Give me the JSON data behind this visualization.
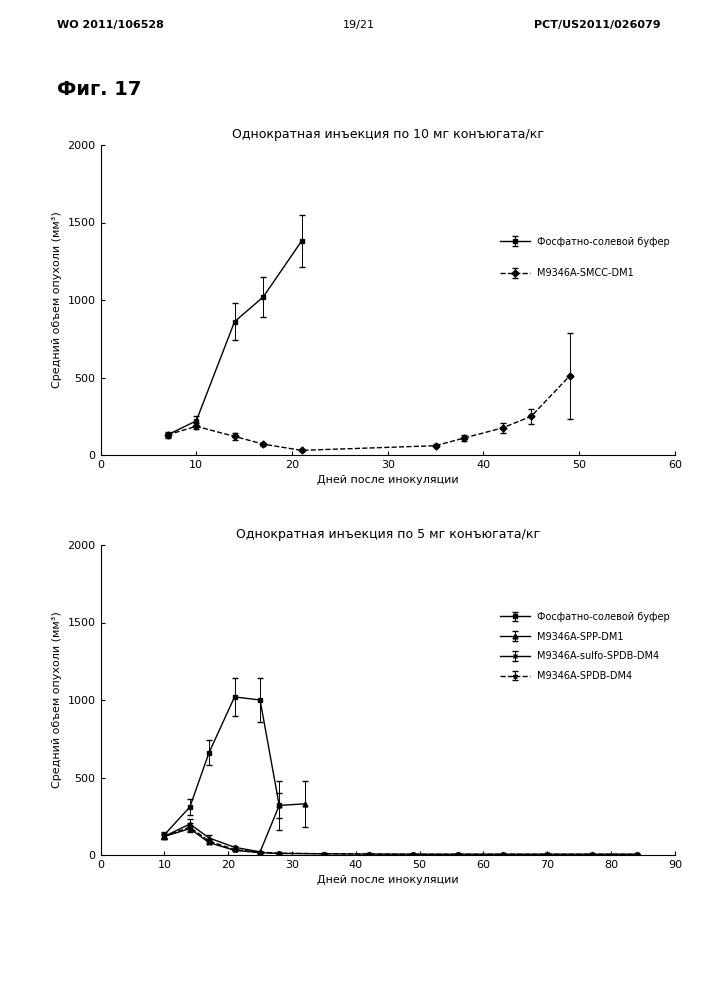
{
  "fig_label": "Фиг. 17",
  "header_left": "WO 2011/106528",
  "header_right": "PCT/US2011/026079",
  "header_center": "19/21",
  "plot1": {
    "title": "Однократная инъекция по 10 мг конъюгата/кг",
    "ylabel": "Средний объем опухоли (мм³)",
    "xlabel": "Дней после инокуляции",
    "xlim": [
      0,
      60
    ],
    "ylim": [
      0,
      2000
    ],
    "xticks": [
      0,
      10,
      20,
      30,
      40,
      50,
      60
    ],
    "yticks": [
      0,
      500,
      1000,
      1500,
      2000
    ],
    "series": [
      {
        "label": "Фосфатно-солевой буфер",
        "x": [
          7,
          10,
          14,
          17,
          21
        ],
        "y": [
          130,
          220,
          860,
          1020,
          1380
        ],
        "yerr": [
          20,
          30,
          120,
          130,
          170
        ],
        "marker": "s",
        "linestyle": "-"
      },
      {
        "label": "M9346A-SMCC-DM1",
        "x": [
          7,
          10,
          14,
          17,
          21,
          35,
          38,
          42,
          45,
          49
        ],
        "y": [
          130,
          185,
          120,
          70,
          30,
          60,
          110,
          175,
          250,
          510
        ],
        "yerr": [
          15,
          20,
          20,
          10,
          5,
          10,
          20,
          30,
          50,
          280
        ],
        "marker": "D",
        "linestyle": "--"
      }
    ]
  },
  "plot2": {
    "title": "Однократная инъекция по 5 мг конъюгата/кг",
    "ylabel": "Средний объем опухоли (мм³)",
    "xlabel": "Дней после инокуляции",
    "xlim": [
      0,
      90
    ],
    "ylim": [
      0,
      2000
    ],
    "xticks": [
      0,
      10,
      20,
      30,
      40,
      50,
      60,
      70,
      80,
      90
    ],
    "yticks": [
      0,
      500,
      1000,
      1500,
      2000
    ],
    "series": [
      {
        "label": "Фосфатно-солевой буфер",
        "x": [
          10,
          14,
          17,
          21,
          25,
          28
        ],
        "y": [
          130,
          310,
          660,
          1020,
          1000,
          320
        ],
        "yerr": [
          20,
          50,
          80,
          120,
          140,
          80
        ],
        "marker": "s",
        "linestyle": "-"
      },
      {
        "label": "M9346A-SPP-DM1",
        "x": [
          10,
          14,
          17,
          21,
          25,
          28,
          32
        ],
        "y": [
          120,
          200,
          110,
          50,
          20,
          320,
          330
        ],
        "yerr": [
          15,
          30,
          20,
          10,
          5,
          160,
          150
        ],
        "marker": "^",
        "linestyle": "-"
      },
      {
        "label": "M9346A-sulfo-SPDB-DM4",
        "x": [
          10,
          14,
          17,
          21,
          25,
          28,
          35,
          42,
          49,
          56,
          63,
          70,
          77,
          84
        ],
        "y": [
          120,
          170,
          80,
          30,
          15,
          10,
          8,
          6,
          5,
          5,
          5,
          5,
          5,
          5
        ],
        "yerr": [
          15,
          20,
          12,
          5,
          3,
          2,
          2,
          2,
          1,
          1,
          1,
          1,
          1,
          1
        ],
        "marker": "x",
        "linestyle": "-"
      },
      {
        "label": "M9346A-SPDB-DM4",
        "x": [
          10,
          14,
          17,
          21,
          25,
          28,
          35,
          42,
          49,
          56,
          63,
          70,
          77,
          84
        ],
        "y": [
          120,
          180,
          90,
          35,
          18,
          12,
          8,
          6,
          5,
          5,
          5,
          5,
          5,
          5
        ],
        "yerr": [
          15,
          25,
          12,
          5,
          3,
          2,
          2,
          2,
          1,
          1,
          1,
          1,
          1,
          1
        ],
        "marker": "*",
        "linestyle": "--"
      }
    ]
  },
  "background_color": "#ffffff",
  "font_color": "#000000",
  "font_size_title": 9,
  "font_size_label": 8,
  "font_size_tick": 8,
  "font_size_legend": 7,
  "font_size_header": 8,
  "font_size_fig_label": 14
}
